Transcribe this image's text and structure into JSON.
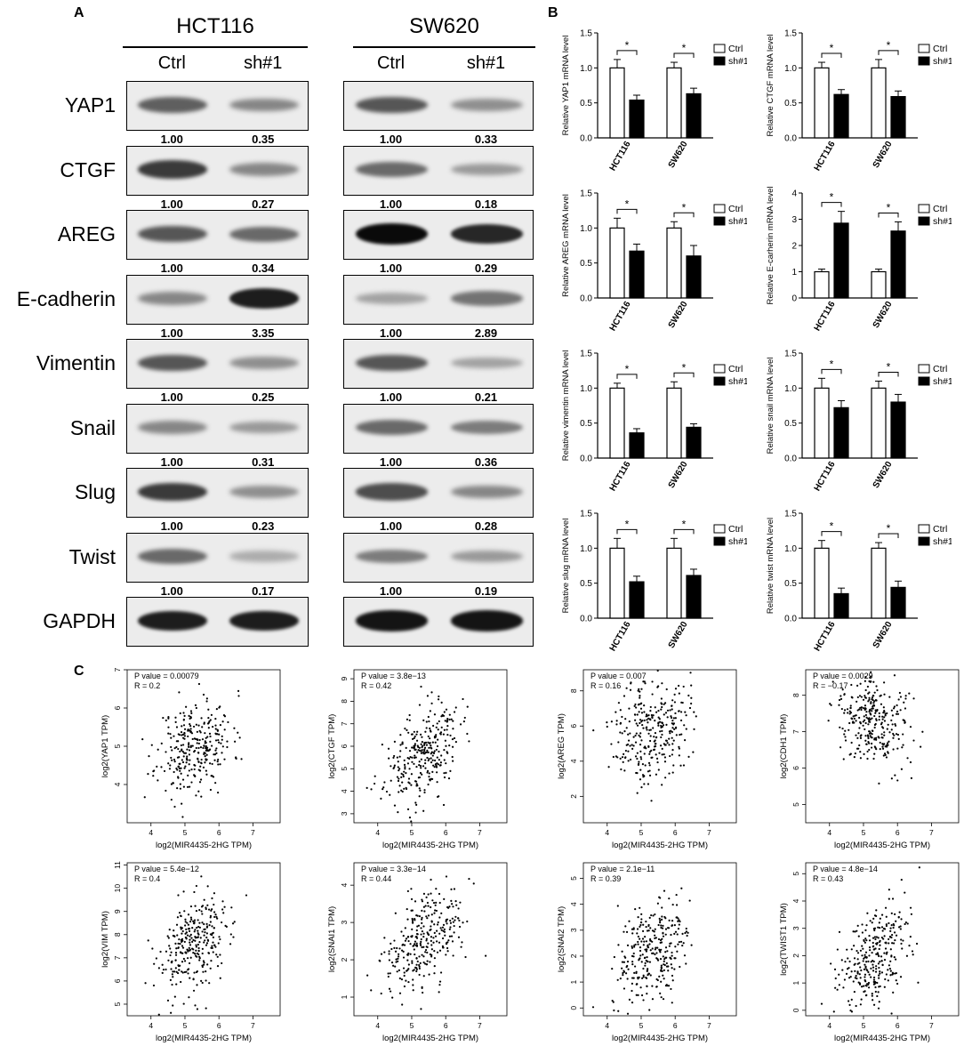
{
  "panel_labels": {
    "a": "A",
    "b": "B",
    "c": "C"
  },
  "western_blot": {
    "cell_lines": [
      "HCT116",
      "SW620"
    ],
    "conditions": [
      "Ctrl",
      "sh#1"
    ],
    "rows": [
      {
        "protein": "YAP1",
        "quant": [
          [
            "1.00",
            "0.35"
          ],
          [
            "1.00",
            "0.33"
          ]
        ],
        "band": [
          [
            0.55,
            0.35
          ],
          [
            0.6,
            0.3
          ]
        ]
      },
      {
        "protein": "CTGF",
        "quant": [
          [
            "1.00",
            "0.27"
          ],
          [
            "1.00",
            "0.18"
          ]
        ],
        "band": [
          [
            0.75,
            0.35
          ],
          [
            0.5,
            0.25
          ]
        ]
      },
      {
        "protein": "AREG",
        "quant": [
          [
            "1.00",
            "0.34"
          ],
          [
            "1.00",
            "0.29"
          ]
        ],
        "band": [
          [
            0.6,
            0.5
          ],
          [
            1.0,
            0.85
          ]
        ]
      },
      {
        "protein": "E-cadherin",
        "quant": [
          [
            "1.00",
            "3.35"
          ],
          [
            "1.00",
            "2.89"
          ]
        ],
        "band": [
          [
            0.35,
            0.9
          ],
          [
            0.2,
            0.45
          ]
        ]
      },
      {
        "protein": "Vimentin",
        "quant": [
          [
            "1.00",
            "0.25"
          ],
          [
            "1.00",
            "0.21"
          ]
        ],
        "band": [
          [
            0.6,
            0.3
          ],
          [
            0.6,
            0.2
          ]
        ]
      },
      {
        "protein": "Snail",
        "quant": [
          [
            "1.00",
            "0.31"
          ],
          [
            "1.00",
            "0.36"
          ]
        ],
        "band": [
          [
            0.35,
            0.25
          ],
          [
            0.5,
            0.4
          ]
        ]
      },
      {
        "protein": "Slug",
        "quant": [
          [
            "1.00",
            "0.23"
          ],
          [
            "1.00",
            "0.28"
          ]
        ],
        "band": [
          [
            0.75,
            0.3
          ],
          [
            0.65,
            0.35
          ]
        ]
      },
      {
        "protein": "Twist",
        "quant": [
          [
            "1.00",
            "0.17"
          ],
          [
            "1.00",
            "0.19"
          ]
        ],
        "band": [
          [
            0.5,
            0.15
          ],
          [
            0.4,
            0.25
          ]
        ]
      },
      {
        "protein": "GAPDH",
        "quant": null,
        "band": [
          [
            0.9,
            0.9
          ],
          [
            0.95,
            0.95
          ]
        ]
      }
    ]
  },
  "chart_data": [
    {
      "type": "bar",
      "categories": [
        "HCT116",
        "SW620"
      ],
      "ylabel": "Relative YAP1 mRNA level",
      "ylim": [
        0,
        1.5
      ],
      "yticks": [
        "0.0",
        "0.5",
        "1.0",
        "1.5"
      ],
      "series": [
        {
          "name": "Ctrl",
          "values": [
            1.0,
            1.0
          ],
          "err": [
            0.12,
            0.08
          ]
        },
        {
          "name": "sh#1",
          "values": [
            0.54,
            0.63
          ],
          "err": [
            0.07,
            0.08
          ]
        }
      ],
      "sig": [
        "*",
        "*"
      ]
    },
    {
      "type": "bar",
      "categories": [
        "HCT116",
        "SW620"
      ],
      "ylabel": "Relative CTGF mRNA level",
      "ylim": [
        0,
        1.5
      ],
      "yticks": [
        "0.0",
        "0.5",
        "1.0",
        "1.5"
      ],
      "series": [
        {
          "name": "Ctrl",
          "values": [
            1.0,
            1.0
          ],
          "err": [
            0.08,
            0.12
          ]
        },
        {
          "name": "sh#1",
          "values": [
            0.62,
            0.59
          ],
          "err": [
            0.07,
            0.08
          ]
        }
      ],
      "sig": [
        "*",
        "*"
      ]
    },
    {
      "type": "bar",
      "categories": [
        "HCT116",
        "SW620"
      ],
      "ylabel": "Relative AREG mRNA level",
      "ylim": [
        0,
        1.5
      ],
      "yticks": [
        "0.0",
        "0.5",
        "1.0",
        "1.5"
      ],
      "series": [
        {
          "name": "Ctrl",
          "values": [
            1.0,
            1.0
          ],
          "err": [
            0.14,
            0.09
          ]
        },
        {
          "name": "sh#1",
          "values": [
            0.67,
            0.6
          ],
          "err": [
            0.1,
            0.15
          ]
        }
      ],
      "sig": [
        "*",
        "*"
      ]
    },
    {
      "type": "bar",
      "categories": [
        "HCT116",
        "SW620"
      ],
      "ylabel": "Relative E-carherin mRNA level",
      "ylim": [
        0,
        4
      ],
      "yticks": [
        "0",
        "1",
        "2",
        "3",
        "4"
      ],
      "series": [
        {
          "name": "Ctrl",
          "values": [
            1.0,
            1.0
          ],
          "err": [
            0.1,
            0.1
          ]
        },
        {
          "name": "sh#1",
          "values": [
            2.85,
            2.55
          ],
          "err": [
            0.45,
            0.35
          ]
        }
      ],
      "sig": [
        "*",
        "*"
      ]
    },
    {
      "type": "bar",
      "categories": [
        "HCT116",
        "SW620"
      ],
      "ylabel": "Relative vimentin mRNA level",
      "ylim": [
        0,
        1.5
      ],
      "yticks": [
        "0.0",
        "0.5",
        "1.0",
        "1.5"
      ],
      "series": [
        {
          "name": "Ctrl",
          "values": [
            1.0,
            1.0
          ],
          "err": [
            0.07,
            0.09
          ]
        },
        {
          "name": "sh#1",
          "values": [
            0.36,
            0.44
          ],
          "err": [
            0.06,
            0.05
          ]
        }
      ],
      "sig": [
        "*",
        "*"
      ]
    },
    {
      "type": "bar",
      "categories": [
        "HCT116",
        "SW620"
      ],
      "ylabel": "Relative snail mRNA level",
      "ylim": [
        0,
        1.5
      ],
      "yticks": [
        "0.0",
        "0.5",
        "1.0",
        "1.5"
      ],
      "series": [
        {
          "name": "Ctrl",
          "values": [
            1.0,
            1.0
          ],
          "err": [
            0.14,
            0.1
          ]
        },
        {
          "name": "sh#1",
          "values": [
            0.72,
            0.8
          ],
          "err": [
            0.1,
            0.11
          ]
        }
      ],
      "sig": [
        "*",
        "*"
      ]
    },
    {
      "type": "bar",
      "categories": [
        "HCT116",
        "SW620"
      ],
      "ylabel": "Relative slug mRNA level",
      "ylim": [
        0,
        1.5
      ],
      "yticks": [
        "0.0",
        "0.5",
        "1.0",
        "1.5"
      ],
      "series": [
        {
          "name": "Ctrl",
          "values": [
            1.0,
            1.0
          ],
          "err": [
            0.14,
            0.14
          ]
        },
        {
          "name": "sh#1",
          "values": [
            0.52,
            0.61
          ],
          "err": [
            0.08,
            0.09
          ]
        }
      ],
      "sig": [
        "*",
        "*"
      ]
    },
    {
      "type": "bar",
      "categories": [
        "HCT116",
        "SW620"
      ],
      "ylabel": "Relative twist mRNA level",
      "ylim": [
        0,
        1.5
      ],
      "yticks": [
        "0.0",
        "0.5",
        "1.0",
        "1.5"
      ],
      "series": [
        {
          "name": "Ctrl",
          "values": [
            1.0,
            1.0
          ],
          "err": [
            0.11,
            0.08
          ]
        },
        {
          "name": "sh#1",
          "values": [
            0.35,
            0.44
          ],
          "err": [
            0.08,
            0.09
          ]
        }
      ],
      "sig": [
        "*",
        "*"
      ]
    },
    {
      "type": "scatter",
      "stat_p": "P value = 0.00079",
      "stat_r": "R = 0.2",
      "xlabel": "log2(MIR4435-2HG TPM)",
      "ylabel": "log2(YAP1 TPM)",
      "xlim": [
        3.3,
        7.8
      ],
      "ylim": [
        3.0,
        7.0
      ],
      "xticks": [
        "4",
        "5",
        "6",
        "7"
      ],
      "yticks": [
        "4",
        "5",
        "6",
        "7"
      ],
      "n": 300,
      "mx": 5.3,
      "sx": 0.55,
      "my": 5.0,
      "sy": 0.6,
      "r": 0.2,
      "seed": 11
    },
    {
      "type": "scatter",
      "stat_p": "P value = 3.8e−13",
      "stat_r": "R = 0.42",
      "xlabel": "log2(MIR4435-2HG TPM)",
      "ylabel": "log2(CTGF TPM)",
      "xlim": [
        3.3,
        7.8
      ],
      "ylim": [
        2.6,
        9.4
      ],
      "xticks": [
        "4",
        "5",
        "6",
        "7"
      ],
      "yticks": [
        "3",
        "4",
        "5",
        "6",
        "7",
        "8",
        "9"
      ],
      "n": 300,
      "mx": 5.3,
      "sx": 0.55,
      "my": 5.6,
      "sy": 1.1,
      "r": 0.42,
      "seed": 23
    },
    {
      "type": "scatter",
      "stat_p": "P value = 0.007",
      "stat_r": "R = 0.16",
      "xlabel": "log2(MIR4435-2HG TPM)",
      "ylabel": "log2(AREG TPM)",
      "xlim": [
        3.3,
        7.8
      ],
      "ylim": [
        0.5,
        9.2
      ],
      "xticks": [
        "4",
        "5",
        "6",
        "7"
      ],
      "yticks": [
        "2",
        "4",
        "6",
        "8"
      ],
      "n": 300,
      "mx": 5.3,
      "sx": 0.55,
      "my": 5.9,
      "sy": 1.5,
      "r": 0.16,
      "seed": 37
    },
    {
      "type": "scatter",
      "stat_p": "P value = 0.0029",
      "stat_r": "R = −0.17",
      "xlabel": "log2(MIR4435-2HG TPM)",
      "ylabel": "log2(CDH1 TPM)",
      "xlim": [
        3.3,
        7.8
      ],
      "ylim": [
        4.5,
        8.7
      ],
      "xticks": [
        "4",
        "5",
        "6",
        "7"
      ],
      "yticks": [
        "5",
        "6",
        "7",
        "8"
      ],
      "n": 300,
      "mx": 5.3,
      "sx": 0.55,
      "my": 7.3,
      "sy": 0.6,
      "r": -0.17,
      "seed": 41
    },
    {
      "type": "scatter",
      "stat_p": "P value = 5.4e−12",
      "stat_r": "R = 0.4",
      "xlabel": "log2(MIR4435-2HG TPM)",
      "ylabel": "log2(VIM TPM)",
      "xlim": [
        3.3,
        7.8
      ],
      "ylim": [
        4.5,
        11.1
      ],
      "xticks": [
        "4",
        "5",
        "6",
        "7"
      ],
      "yticks": [
        "5",
        "6",
        "7",
        "8",
        "9",
        "10",
        "11"
      ],
      "n": 300,
      "mx": 5.3,
      "sx": 0.55,
      "my": 7.6,
      "sy": 1.1,
      "r": 0.4,
      "seed": 53
    },
    {
      "type": "scatter",
      "stat_p": "P value = 3.3e−14",
      "stat_r": "R = 0.44",
      "xlabel": "log2(MIR4435-2HG TPM)",
      "ylabel": "log2(SNAI1 TPM)",
      "xlim": [
        3.3,
        7.8
      ],
      "ylim": [
        0.5,
        4.6
      ],
      "xticks": [
        "4",
        "5",
        "6",
        "7"
      ],
      "yticks": [
        "1",
        "2",
        "3",
        "4"
      ],
      "n": 300,
      "mx": 5.3,
      "sx": 0.55,
      "my": 2.4,
      "sy": 0.7,
      "r": 0.44,
      "seed": 67
    },
    {
      "type": "scatter",
      "stat_p": "P value = 2.1e−11",
      "stat_r": "R = 0.39",
      "xlabel": "log2(MIR4435-2HG TPM)",
      "ylabel": "log2(SNAI2 TPM)",
      "xlim": [
        3.3,
        7.8
      ],
      "ylim": [
        -0.3,
        5.6
      ],
      "xticks": [
        "4",
        "5",
        "6",
        "7"
      ],
      "yticks": [
        "0",
        "1",
        "2",
        "3",
        "4",
        "5"
      ],
      "n": 300,
      "mx": 5.3,
      "sx": 0.55,
      "my": 2.2,
      "sy": 1.0,
      "r": 0.39,
      "seed": 79
    },
    {
      "type": "scatter",
      "stat_p": "P value = 4.8e−14",
      "stat_r": "R = 0.43",
      "xlabel": "log2(MIR4435-2HG TPM)",
      "ylabel": "log2(TWIST1 TPM)",
      "xlim": [
        3.3,
        7.8
      ],
      "ylim": [
        -0.2,
        5.4
      ],
      "xticks": [
        "4",
        "5",
        "6",
        "7"
      ],
      "yticks": [
        "0",
        "1",
        "2",
        "3",
        "4",
        "5"
      ],
      "n": 300,
      "mx": 5.3,
      "sx": 0.55,
      "my": 1.9,
      "sy": 1.0,
      "r": 0.43,
      "seed": 83
    }
  ]
}
